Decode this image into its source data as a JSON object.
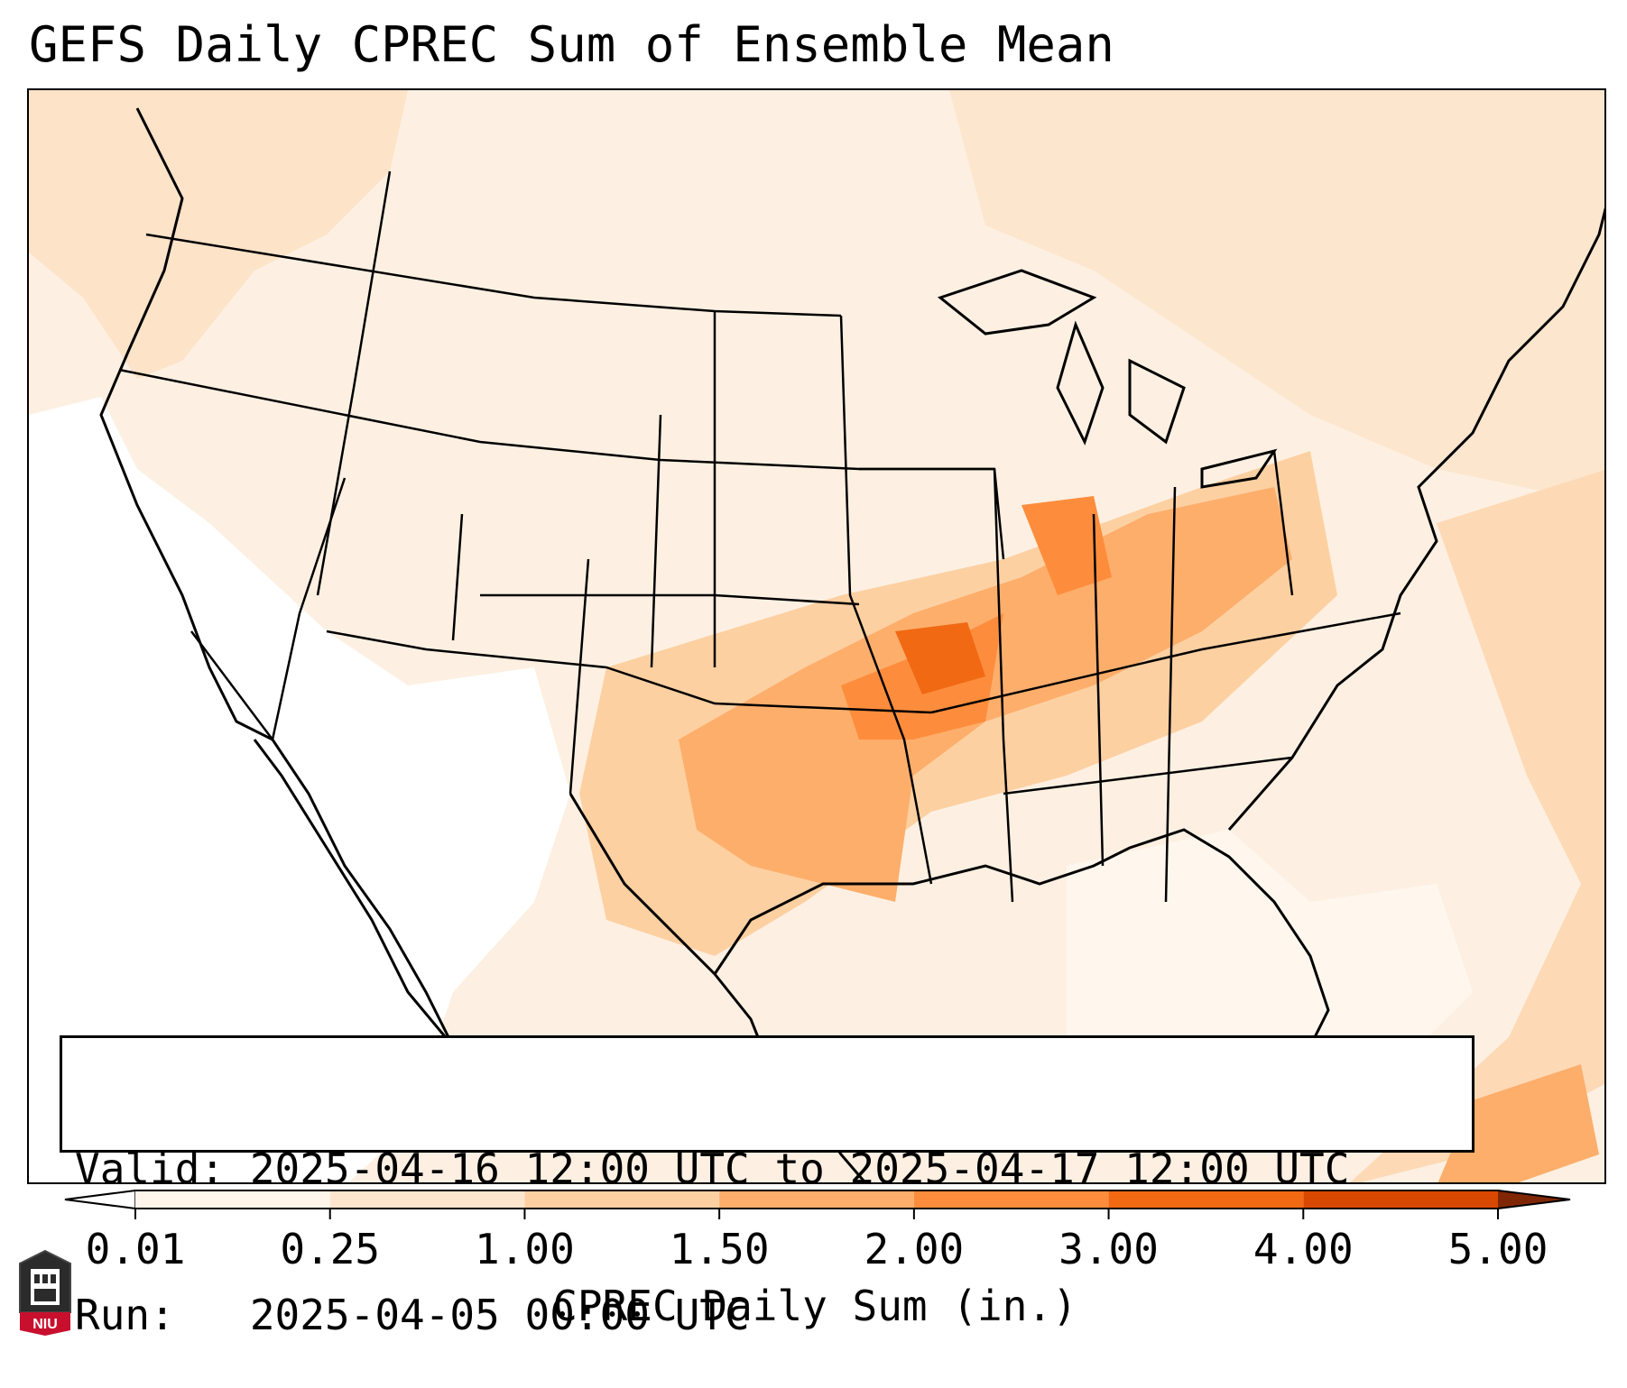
{
  "title": "GEFS Daily CPREC Sum of Ensemble Mean",
  "info": {
    "valid_line": "Valid: 2025-04-16 12:00 UTC to 2025-04-17 12:00 UTC",
    "run_line": "Run:   2025-04-05 00:00 UTC"
  },
  "colorbar": {
    "label": "CPREC Daily Sum (in.)",
    "ticks": [
      "0.01",
      "0.25",
      "1.00",
      "1.50",
      "2.00",
      "3.00",
      "4.00",
      "5.00"
    ],
    "colors": [
      "#fff5eb",
      "#fee6ce",
      "#fdd0a2",
      "#fdae6b",
      "#fd8d3c",
      "#f16913",
      "#d94801",
      "#a63603"
    ],
    "under_color": "#ffffff",
    "over_color": "#7f2704",
    "extend": "both"
  },
  "logo": {
    "text": "NIU",
    "color": "#c8102e"
  }
}
